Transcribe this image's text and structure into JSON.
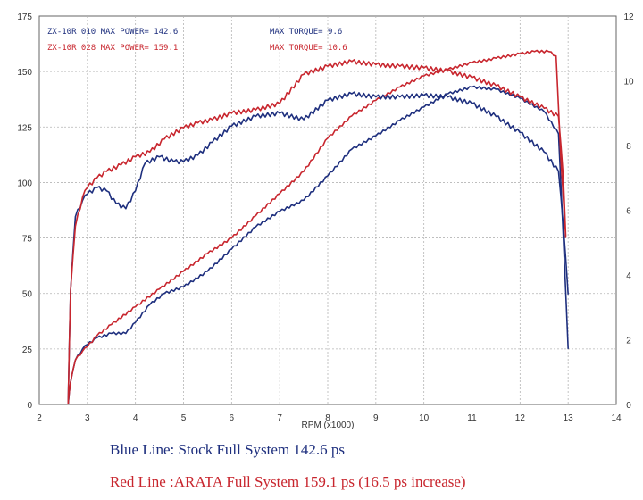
{
  "chart_data": {
    "type": "line",
    "xlabel": "RPM (x1000)",
    "ylabel": "",
    "y2label": "",
    "xlim": [
      2,
      14
    ],
    "ylim": [
      0,
      175
    ],
    "y2lim": [
      0,
      12
    ],
    "grid": true,
    "x_ticks": [
      2,
      3,
      4,
      5,
      6,
      7,
      8,
      9,
      10,
      11,
      12,
      13,
      14
    ],
    "y_ticks": [
      0,
      25,
      50,
      75,
      100,
      125,
      150,
      175
    ],
    "y2_ticks": [
      0,
      2,
      4,
      6,
      8,
      10,
      12
    ],
    "legend": {
      "blue_power": "ZX-10R 010  MAX POWER= 142.6",
      "blue_torque": "MAX TORQUE= 9.6",
      "red_power": "ZX-10R 028  MAX POWER= 159.1",
      "red_torque": "MAX TORQUE= 10.6"
    },
    "series": [
      {
        "id": "blue_power",
        "axis": "left",
        "color": "#1e2f7e",
        "x": [
          2.6,
          2.65,
          2.75,
          2.9,
          3.0,
          3.2,
          3.5,
          3.8,
          4.0,
          4.3,
          4.6,
          5.0,
          5.5,
          6.0,
          6.5,
          7.0,
          7.5,
          8.0,
          8.5,
          9.0,
          9.5,
          10.0,
          10.5,
          11.0,
          11.5,
          12.0,
          12.5,
          12.8,
          12.9,
          13.0
        ],
        "y": [
          0,
          10,
          20,
          25,
          27,
          30,
          32,
          32,
          37,
          45,
          50,
          53,
          60,
          70,
          80,
          87,
          92,
          103,
          115,
          121,
          128,
          134,
          140,
          143,
          142,
          138,
          132,
          122,
          75,
          25
        ]
      },
      {
        "id": "red_power",
        "axis": "left",
        "color": "#c8262e",
        "x": [
          2.6,
          2.65,
          2.75,
          2.9,
          3.0,
          3.2,
          3.5,
          4.0,
          4.5,
          5.0,
          5.5,
          6.0,
          6.5,
          7.0,
          7.5,
          8.0,
          8.5,
          9.0,
          9.5,
          10.0,
          10.5,
          11.0,
          11.5,
          12.0,
          12.3,
          12.6,
          12.75,
          12.85,
          12.95
        ],
        "y": [
          0,
          10,
          20,
          24,
          26,
          31,
          36,
          44,
          52,
          60,
          68,
          75,
          85,
          95,
          105,
          120,
          130,
          137,
          143,
          148,
          151,
          154,
          156,
          158,
          159,
          159,
          157,
          110,
          75
        ]
      },
      {
        "id": "blue_torque",
        "axis": "right",
        "color": "#1e2f7e",
        "x": [
          2.6,
          2.65,
          2.75,
          2.9,
          3.0,
          3.2,
          3.4,
          3.6,
          3.8,
          4.0,
          4.2,
          4.5,
          4.8,
          5.0,
          5.3,
          5.6,
          6.0,
          6.5,
          7.0,
          7.5,
          8.0,
          8.5,
          9.0,
          9.5,
          10.0,
          10.5,
          11.0,
          11.5,
          12.0,
          12.5,
          12.8,
          12.9,
          13.0
        ],
        "y": [
          0,
          3.5,
          5.8,
          6.3,
          6.5,
          6.7,
          6.6,
          6.2,
          6.05,
          6.6,
          7.45,
          7.65,
          7.5,
          7.5,
          7.7,
          8.1,
          8.6,
          8.9,
          9.0,
          8.8,
          9.4,
          9.6,
          9.5,
          9.5,
          9.55,
          9.5,
          9.3,
          8.9,
          8.4,
          7.8,
          7.2,
          5.5,
          3.4
        ]
      },
      {
        "id": "red_torque",
        "axis": "right",
        "color": "#c8262e",
        "x": [
          2.6,
          2.65,
          2.75,
          2.9,
          3.0,
          3.2,
          3.4,
          3.7,
          4.0,
          4.3,
          4.6,
          5.0,
          5.3,
          5.6,
          6.0,
          6.5,
          7.0,
          7.5,
          8.0,
          8.5,
          9.0,
          9.5,
          10.0,
          10.5,
          11.0,
          11.5,
          12.0,
          12.5,
          12.8,
          12.9,
          12.95
        ],
        "y": [
          0,
          3.5,
          5.5,
          6.4,
          6.7,
          7.0,
          7.2,
          7.4,
          7.65,
          7.8,
          8.2,
          8.55,
          8.7,
          8.8,
          9.0,
          9.1,
          9.3,
          10.2,
          10.45,
          10.6,
          10.5,
          10.45,
          10.4,
          10.3,
          10.1,
          9.85,
          9.5,
          9.15,
          8.9,
          7.0,
          5.2
        ]
      }
    ]
  },
  "captions": {
    "blue": "Blue Line: Stock Full System 142.6 ps",
    "red": "Red Line :ARATA Full System 159.1 ps (16.5 ps increase)"
  }
}
